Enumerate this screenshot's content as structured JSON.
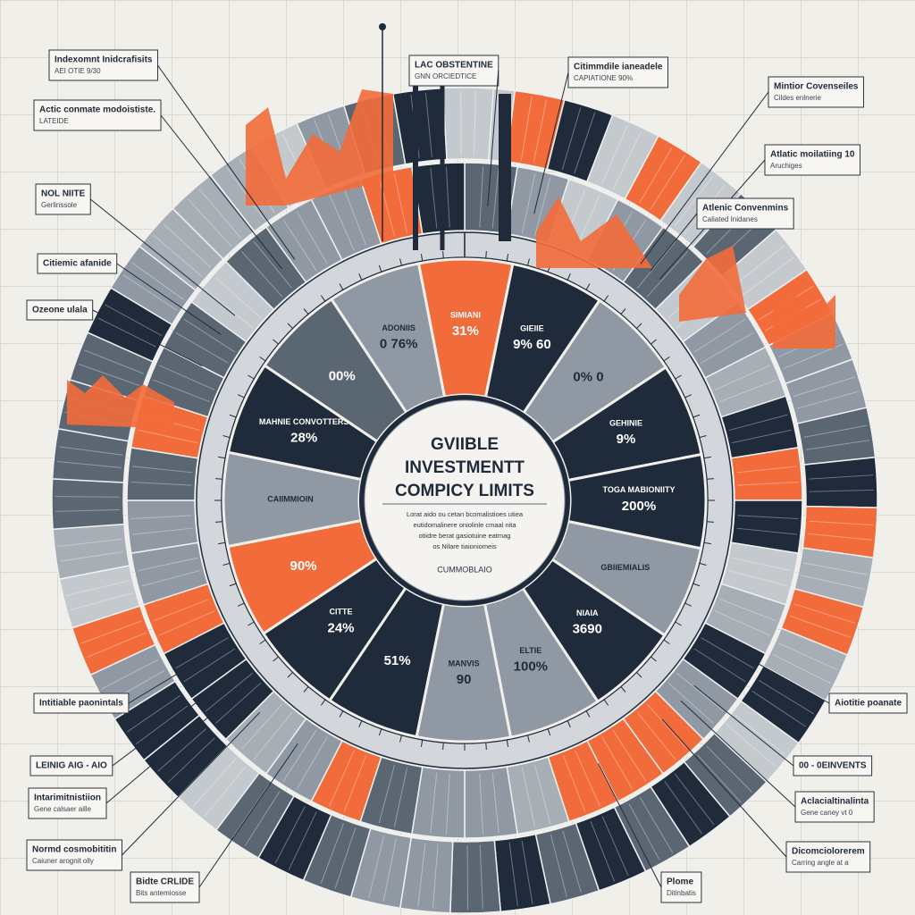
{
  "title_lines": [
    "GVIIBLE",
    "INVESTMENTT",
    "COMPICY LIMITS"
  ],
  "center_note": [
    "Lorat aido ou cetan bcomalistioes utiea",
    "eutidomalinere oniolinle cmaal nita",
    "otiidre berat gasiotuine eatmag",
    "os Nilare tiaioniomeis"
  ],
  "center_caption": "CUMMOBLAIO",
  "segments": [
    {
      "name": "SIMIANI",
      "value": "31%"
    },
    {
      "name": "GIEIIE",
      "value": "9% 60"
    },
    {
      "value": "0% 0"
    },
    {
      "name": "GEHINIE",
      "value": "9%"
    },
    {
      "name": "TOGA MABIONIITY",
      "value": "200%"
    },
    {
      "name": "GBIIEMIALIS"
    },
    {
      "name": "NIAIA",
      "value": "3690"
    },
    {
      "name": "ELTIE",
      "value": "100%"
    },
    {
      "name": "MANVIS",
      "value": "90"
    },
    {
      "value": "51%"
    },
    {
      "name": "CITTE",
      "value": "24%"
    },
    {
      "value": "90%"
    },
    {
      "name": "CAIIMMIOIN"
    },
    {
      "name": "MAHNIE CONVOTTERS",
      "value": "28%"
    },
    {
      "value": "00%"
    },
    {
      "name": "ADONIIS",
      "value": "0 76%"
    }
  ],
  "callouts": [
    {
      "label": "Indexomnt Inidcrafisits",
      "sub": "AEI OTIE 9/30"
    },
    {
      "label": "Actic conmate modoististe.",
      "sub": "LATEIDE"
    },
    {
      "label": "LAC OBSTENTINE",
      "sub": "GNN ORCIEDTICE"
    },
    {
      "label": "Citimmdile ianeadele",
      "sub": "CAPIATIONE 90%"
    },
    {
      "label": "Mintior Covenseiles",
      "sub": "Cildes enlnerie"
    },
    {
      "label": "Atlatic moilatiing 10",
      "sub": "Aruchiges"
    },
    {
      "label": "Atlenic Convenmins",
      "sub": "Caliated Inidanes"
    },
    {
      "label": "NOL NIITE",
      "sub": "Gerlinssole"
    },
    {
      "label": "Citiemic afanide"
    },
    {
      "label": "Ozeone ulala"
    },
    {
      "label": "Intitiable paonintals"
    },
    {
      "label": "LEINIG AIG - AIO"
    },
    {
      "label": "Intarimitnistiion",
      "sub": "Gene calsaer aille"
    },
    {
      "label": "Normd cosmobititin",
      "sub": "Caiuner arognit olly"
    },
    {
      "label": "Bidte CRLIDE",
      "sub": "Bits antemiosse"
    },
    {
      "label": "Aiotitie poanate"
    },
    {
      "label": "00 - 0EINVENTS"
    },
    {
      "label": "Aclacialtinalinta",
      "sub": "Gene caney vt 0"
    },
    {
      "label": "Dicomciolorerem",
      "sub": "Carring angle at a"
    },
    {
      "label": "Plome",
      "sub": "Ditinbatis"
    }
  ]
}
